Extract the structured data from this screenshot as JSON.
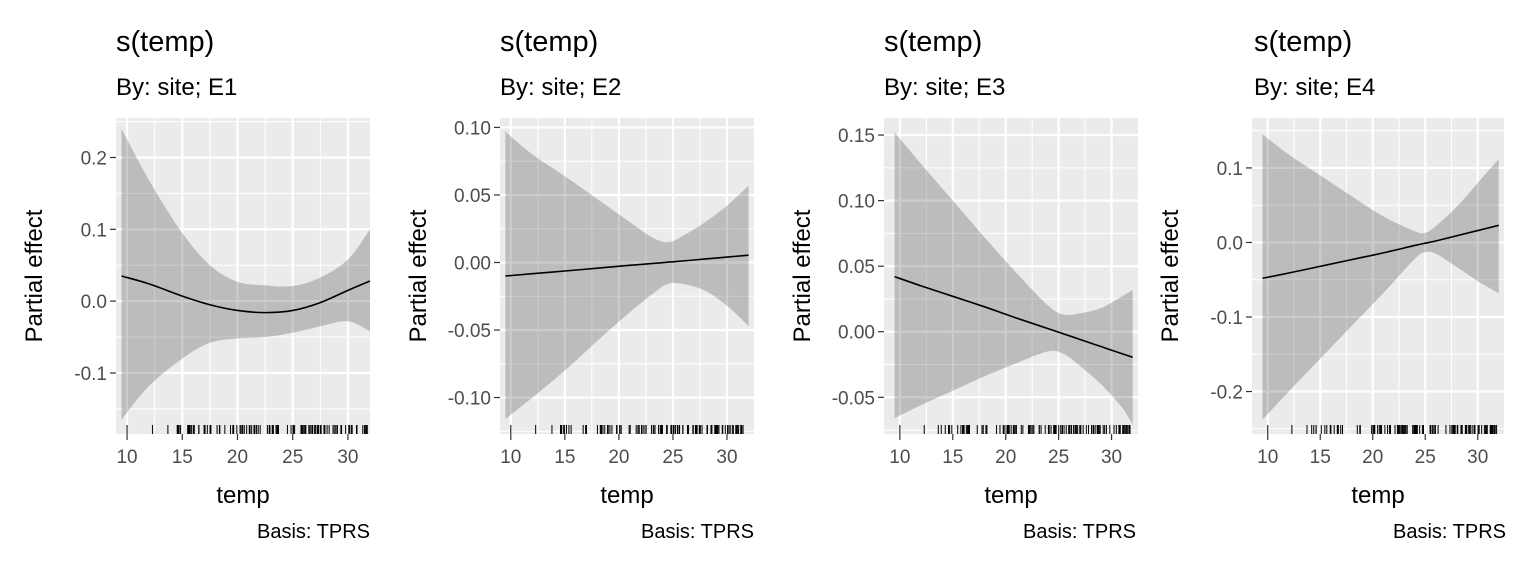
{
  "chart_data": [
    {
      "type": "line",
      "title": "s(temp)",
      "subtitle": "By: site; E1",
      "caption": "Basis: TPRS",
      "xlabel": "temp",
      "ylabel": "Partial effect",
      "xlim": [
        9,
        32
      ],
      "ylim": [
        -0.185,
        0.255
      ],
      "xticks": [
        10,
        15,
        20,
        25,
        30
      ],
      "yticks": [
        -0.1,
        0.0,
        0.1,
        0.2
      ],
      "ytick_labels": [
        "-0.1",
        "0.0",
        "0.1",
        "0.2"
      ],
      "grid": true,
      "series": [
        {
          "x": [
            9.5,
            12,
            15,
            17.5,
            20,
            22.5,
            25,
            27.5,
            30,
            32
          ],
          "fit": [
            0.035,
            0.024,
            0.007,
            -0.005,
            -0.013,
            -0.016,
            -0.013,
            -0.002,
            0.015,
            0.028
          ],
          "lower": [
            -0.165,
            -0.118,
            -0.08,
            -0.058,
            -0.052,
            -0.05,
            -0.044,
            -0.035,
            -0.028,
            -0.042
          ],
          "upper": [
            0.24,
            0.168,
            0.095,
            0.05,
            0.027,
            0.022,
            0.021,
            0.033,
            0.058,
            0.1
          ]
        }
      ]
    },
    {
      "type": "line",
      "title": "s(temp)",
      "subtitle": "By: site; E2",
      "caption": "Basis: TPRS",
      "xlabel": "temp",
      "ylabel": "Partial effect",
      "xlim": [
        9,
        32.5
      ],
      "ylim": [
        -0.127,
        0.107
      ],
      "xticks": [
        10,
        15,
        20,
        25,
        30
      ],
      "yticks": [
        -0.1,
        -0.05,
        0.0,
        0.05,
        0.1
      ],
      "ytick_labels": [
        "-0.10",
        "-0.05",
        "0.00",
        "0.05",
        "0.10"
      ],
      "grid": true,
      "series": [
        {
          "x": [
            9.5,
            12,
            15,
            18,
            21,
            23,
            24.5,
            26,
            28,
            30,
            32
          ],
          "fit": [
            -0.01,
            -0.0083,
            -0.0063,
            -0.0042,
            -0.0021,
            -0.0008,
            0.0002,
            0.0012,
            0.0026,
            0.004,
            0.0054
          ],
          "lower": [
            -0.116,
            -0.1,
            -0.08,
            -0.058,
            -0.037,
            -0.024,
            -0.016,
            -0.016,
            -0.021,
            -0.032,
            -0.047
          ],
          "upper": [
            0.097,
            0.08,
            0.064,
            0.047,
            0.03,
            0.019,
            0.015,
            0.02,
            0.03,
            0.042,
            0.057
          ]
        }
      ]
    },
    {
      "type": "line",
      "title": "s(temp)",
      "subtitle": "By: site; E3",
      "caption": "Basis: TPRS",
      "xlabel": "temp",
      "ylabel": "Partial effect",
      "xlim": [
        8.5,
        32.5
      ],
      "ylim": [
        -0.078,
        0.163
      ],
      "xticks": [
        10,
        15,
        20,
        25,
        30
      ],
      "yticks": [
        -0.05,
        0.0,
        0.05,
        0.1,
        0.15
      ],
      "ytick_labels": [
        "-0.05",
        "0.00",
        "0.05",
        "0.10",
        "0.15"
      ],
      "grid": true,
      "series": [
        {
          "x": [
            9.5,
            12,
            15,
            18,
            21,
            24,
            25.5,
            27,
            29,
            31,
            32
          ],
          "fit": [
            0.042,
            0.035,
            0.027,
            0.019,
            0.0105,
            0.0024,
            -0.0017,
            -0.0058,
            -0.0113,
            -0.0168,
            -0.0195
          ],
          "lower": [
            -0.066,
            -0.056,
            -0.045,
            -0.034,
            -0.024,
            -0.015,
            -0.017,
            -0.026,
            -0.04,
            -0.058,
            -0.071
          ],
          "upper": [
            0.152,
            0.128,
            0.1,
            0.072,
            0.045,
            0.02,
            0.013,
            0.014,
            0.018,
            0.027,
            0.032
          ]
        }
      ]
    },
    {
      "type": "line",
      "title": "s(temp)",
      "subtitle": "By: site; E4",
      "caption": "Basis: TPRS",
      "xlabel": "temp",
      "ylabel": "Partial effect",
      "xlim": [
        8.5,
        32.5
      ],
      "ylim": [
        -0.257,
        0.167
      ],
      "xticks": [
        10,
        15,
        20,
        25,
        30
      ],
      "yticks": [
        -0.2,
        -0.1,
        0.0,
        0.1
      ],
      "ytick_labels": [
        "-0.2",
        "-0.1",
        "0.0",
        "0.1"
      ],
      "grid": true,
      "series": [
        {
          "x": [
            9.5,
            12,
            15,
            18,
            21,
            24,
            25,
            26,
            28,
            30,
            32
          ],
          "fit": [
            -0.048,
            -0.041,
            -0.032,
            -0.023,
            -0.014,
            -0.004,
            -0.001,
            0.002,
            0.009,
            0.016,
            0.023
          ],
          "lower": [
            -0.238,
            -0.2,
            -0.156,
            -0.112,
            -0.068,
            -0.022,
            -0.013,
            -0.015,
            -0.033,
            -0.052,
            -0.068
          ],
          "upper": [
            0.145,
            0.118,
            0.09,
            0.062,
            0.035,
            0.015,
            0.013,
            0.022,
            0.048,
            0.08,
            0.112
          ]
        }
      ]
    }
  ]
}
